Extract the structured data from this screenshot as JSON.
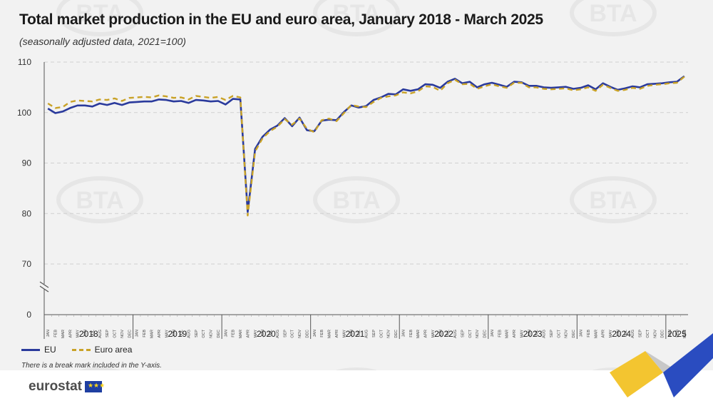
{
  "header": {
    "title": "Total market production in the EU and euro area, January 2018 - March 2025",
    "subtitle": "(seasonally adjusted data, 2021=100)"
  },
  "legend": {
    "eu_label": "EU",
    "ea_label": "Euro area"
  },
  "note": "There is a break mark included in the Y-axis.",
  "footer": {
    "brand": "eurostat",
    "flag_stars": "★★★"
  },
  "watermark_text": "BTA",
  "colors": {
    "eu": "#2a3a9c",
    "euro_area": "#c9a227",
    "grid": "#d0d0d0",
    "axis": "#555555"
  },
  "chart_data": {
    "type": "line",
    "title": "Total market production in the EU and euro area, January 2018 - March 2025",
    "subtitle": "(seasonally adjusted data, 2021=100)",
    "y_ticks": [
      0,
      70,
      80,
      90,
      100,
      110
    ],
    "y_break": [
      0,
      70
    ],
    "ylim": [
      65,
      110
    ],
    "grid": "horizontal dashed",
    "month_labels": [
      "JAN",
      "FEB",
      "MAR",
      "APR",
      "MAY",
      "JUN",
      "JUL",
      "AUG",
      "SEP",
      "OCT",
      "NOV",
      "DEC"
    ],
    "years": [
      "2018",
      "2019",
      "2020",
      "2021",
      "2022",
      "2023",
      "2024",
      "2025"
    ],
    "months_in_last_year": 3,
    "series": [
      {
        "name": "EU",
        "values": [
          100.8,
          99.9,
          100.2,
          100.9,
          101.4,
          101.4,
          101.2,
          101.8,
          101.5,
          101.9,
          101.5,
          102.0,
          102.1,
          102.2,
          102.2,
          102.6,
          102.5,
          102.2,
          102.3,
          101.9,
          102.5,
          102.4,
          102.2,
          102.3,
          101.6,
          102.7,
          102.6,
          80.3,
          92.8,
          95.2,
          96.6,
          97.4,
          98.9,
          97.3,
          99.0,
          96.5,
          96.3,
          98.4,
          98.6,
          98.5,
          100.1,
          101.4,
          101.0,
          101.3,
          102.5,
          103.0,
          103.7,
          103.6,
          104.6,
          104.3,
          104.6,
          105.6,
          105.5,
          104.9,
          106.1,
          106.7,
          105.8,
          106.1,
          105.0,
          105.6,
          105.9,
          105.5,
          105.1,
          106.1,
          106.0,
          105.3,
          105.3,
          105.0,
          104.9,
          105.0,
          105.1,
          104.7,
          104.9,
          105.4,
          104.6,
          105.8,
          105.1,
          104.5,
          104.8,
          105.2,
          105.0,
          105.6,
          105.7,
          105.8,
          106.0,
          106.1,
          107.2
        ]
      },
      {
        "name": "Euro area",
        "values": [
          101.8,
          100.9,
          101.1,
          102.1,
          102.4,
          102.3,
          102.2,
          102.6,
          102.5,
          102.8,
          102.3,
          102.9,
          103.0,
          103.1,
          103.0,
          103.4,
          103.2,
          102.9,
          103.0,
          102.6,
          103.3,
          103.1,
          102.9,
          103.1,
          102.5,
          103.3,
          103.0,
          79.6,
          92.3,
          94.9,
          96.3,
          97.2,
          98.7,
          97.6,
          98.8,
          96.8,
          96.1,
          98.5,
          98.8,
          98.3,
          99.9,
          101.5,
          101.2,
          101.1,
          102.1,
          102.9,
          103.2,
          103.4,
          104.0,
          103.8,
          104.2,
          105.2,
          105.1,
          104.3,
          105.8,
          106.5,
          105.6,
          105.7,
          104.7,
          105.2,
          105.6,
          105.2,
          104.9,
          105.9,
          105.9,
          105.0,
          105.0,
          104.7,
          104.6,
          104.7,
          104.8,
          104.4,
          104.6,
          105.0,
          104.3,
          105.5,
          104.9,
          104.3,
          104.5,
          104.9,
          104.7,
          105.3,
          105.5,
          105.6,
          105.8,
          105.9,
          107.1
        ]
      }
    ]
  }
}
